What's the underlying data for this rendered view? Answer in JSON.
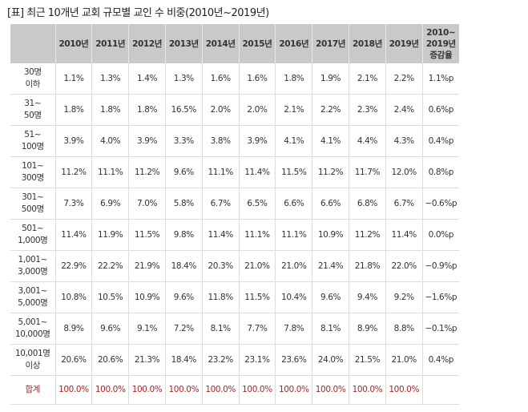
{
  "title": "[표] 최근 10개년 교회 규모별 교인 수 비중(2010년~2019년)",
  "table": {
    "headers": [
      "",
      "2010년",
      "2011년",
      "2012년",
      "2013년",
      "2014년",
      "2015년",
      "2016년",
      "2017년",
      "2018년",
      "2019년",
      "2010~\n2019년\n증감율"
    ],
    "rows": [
      {
        "label": "30명\n이하",
        "values": [
          "1.1%",
          "1.3%",
          "1.4%",
          "1.3%",
          "1.6%",
          "1.6%",
          "1.8%",
          "1.9%",
          "2.1%",
          "2.2%",
          "1.1%p"
        ]
      },
      {
        "label": "31~\n50명",
        "values": [
          "1.8%",
          "1.8%",
          "1.8%",
          "16.5%",
          "2.0%",
          "2.0%",
          "2.1%",
          "2.2%",
          "2.3%",
          "2.4%",
          "0.6%p"
        ]
      },
      {
        "label": "51~\n100명",
        "values": [
          "3.9%",
          "4.0%",
          "3.9%",
          "3.3%",
          "3.8%",
          "3.9%",
          "4.1%",
          "4.1%",
          "4.4%",
          "4.3%",
          "0.4%p"
        ]
      },
      {
        "label": "101~\n300명",
        "values": [
          "11.2%",
          "11.1%",
          "11.2%",
          "9.6%",
          "11.1%",
          "11.4%",
          "11.5%",
          "11.2%",
          "11.7%",
          "12.0%",
          "0.8%p"
        ]
      },
      {
        "label": "301~\n500명",
        "values": [
          "7.3%",
          "6.9%",
          "7.0%",
          "5.8%",
          "6.7%",
          "6.5%",
          "6.6%",
          "6.6%",
          "6.8%",
          "6.7%",
          "−0.6%p"
        ]
      },
      {
        "label": "501~\n1,000명",
        "values": [
          "11.4%",
          "11.9%",
          "11.5%",
          "9.8%",
          "11.4%",
          "11.1%",
          "11.1%",
          "10.9%",
          "11.2%",
          "11.4%",
          "0.0%p"
        ]
      },
      {
        "label": "1,001~\n3,000명",
        "values": [
          "22.9%",
          "22.2%",
          "21.9%",
          "18.4%",
          "20.3%",
          "21.0%",
          "21.0%",
          "21.4%",
          "21.8%",
          "22.0%",
          "−0.9%p"
        ]
      },
      {
        "label": "3,001~\n5,000명",
        "values": [
          "10.8%",
          "10.5%",
          "10.9%",
          "9.6%",
          "11.8%",
          "11.5%",
          "10.4%",
          "9.6%",
          "9.4%",
          "9.2%",
          "−1.6%p"
        ]
      },
      {
        "label": "5,001~\n10,000명",
        "values": [
          "8.9%",
          "9.6%",
          "9.1%",
          "7.2%",
          "8.1%",
          "7.7%",
          "7.8%",
          "8.1%",
          "8.9%",
          "8.8%",
          "−0.1%p"
        ]
      },
      {
        "label": "10,001명\n이상",
        "values": [
          "20.6%",
          "20.6%",
          "21.3%",
          "18.4%",
          "23.2%",
          "23.1%",
          "23.6%",
          "24.0%",
          "21.5%",
          "21.0%",
          "0.4%p"
        ]
      }
    ],
    "total": {
      "label": "합계",
      "values": [
        "100.0%",
        "100.0%",
        "100.0%",
        "100.0%",
        "100.0%",
        "100.0%",
        "100.0%",
        "100.0%",
        "100.0%",
        "100.0%",
        ""
      ]
    }
  },
  "colors": {
    "header_bg": "#c9c9c9",
    "total_text": "#a3282b"
  }
}
